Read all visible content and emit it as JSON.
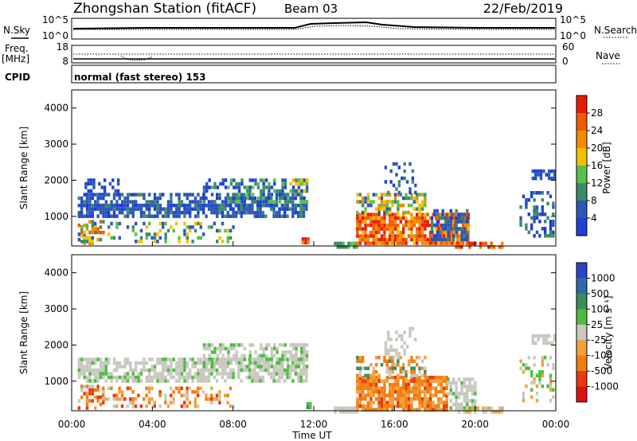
{
  "header": {
    "station": "Zhongshan Station (fitACF)",
    "beam": "Beam 03",
    "date": "22/Feb/2019"
  },
  "noise_panel": {
    "left_label": "N.Sky",
    "right_label": "N.Search",
    "left_ticks": [
      "10^5",
      "10^0"
    ],
    "right_ticks": [
      "10^5",
      "10^0"
    ]
  },
  "freq_panel": {
    "left_label_top": "Freq.",
    "left_label_unit": "[MHz]",
    "left_ticks": [
      "18",
      "8"
    ],
    "right_ticks": [
      "60",
      "0"
    ],
    "right_label": "Nave"
  },
  "cpid": {
    "label": "CPID",
    "mode": "normal (fast stereo) 153"
  },
  "chart_data": [
    {
      "type": "heatmap",
      "name": "power",
      "ylabel": "Slant Range [km]",
      "ylim": [
        180,
        4500
      ],
      "yticks": [
        "1000",
        "2000",
        "3000",
        "4000"
      ],
      "xlim": [
        "00:00",
        "00:00"
      ],
      "colorbar_label": "Power [dB]",
      "colorbar_ticks": [
        "4",
        "8",
        "12",
        "16",
        "20",
        "24",
        "28"
      ],
      "colors": [
        "#1f3fd6",
        "#2c56b8",
        "#3d8a6a",
        "#57c24b",
        "#f2c200",
        "#f48a00",
        "#f25a00",
        "#e81c00"
      ]
    },
    {
      "type": "heatmap",
      "name": "velocity",
      "ylabel": "Slant Range [km]",
      "ylim": [
        180,
        4500
      ],
      "yticks": [
        "1000",
        "2000",
        "3000",
        "4000"
      ],
      "xlabel": "Time UT",
      "xticks": [
        "00:00",
        "04:00",
        "08:00",
        "12:00",
        "16:00",
        "20:00",
        "00:00"
      ],
      "colorbar_label": "Velocity [m s⁻¹]",
      "colorbar_ticks": [
        "1000",
        "500",
        "100",
        "25",
        "-25",
        "-100",
        "-500",
        "-1000"
      ],
      "colors": [
        "#2a44c8",
        "#2c6aa8",
        "#3c8c5c",
        "#4cbc3c",
        "#c8c8c0",
        "#f2a03a",
        "#f27e10",
        "#e83a10",
        "#e01010"
      ]
    }
  ]
}
